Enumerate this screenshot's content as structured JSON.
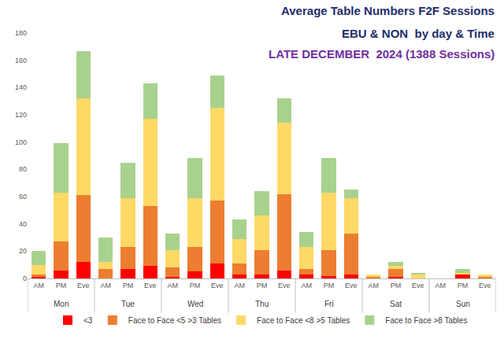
{
  "chart_data": {
    "type": "bar",
    "stacked": true,
    "title": "Average Table Numbers F2F Sessions",
    "subtitle": [
      "EBU & NON  by day & Time",
      "LATE DECEMBER  2024 (1388 Sessions)"
    ],
    "categories": [
      "AM",
      "PM",
      "Eve",
      "AM",
      "PM",
      "Eve",
      "AM",
      "PM",
      "Eve",
      "AM",
      "PM",
      "Eve",
      "AM",
      "PM",
      "Eve",
      "AM",
      "PM",
      "Eve",
      "AM",
      "PM",
      "Eve"
    ],
    "groups": [
      "Mon",
      "Mon",
      "Mon",
      "Tue",
      "Tue",
      "Tue",
      "Wed",
      "Wed",
      "Wed",
      "Thu",
      "Thu",
      "Thu",
      "Fri",
      "Fri",
      "Fri",
      "Sat",
      "Sat",
      "Sat",
      "Sun",
      "Sun",
      "Sun"
    ],
    "series": [
      {
        "name": "<3",
        "color": "#ff0000",
        "values": [
          1,
          6,
          12,
          0,
          7,
          9,
          1,
          5,
          11,
          3,
          3,
          6,
          3,
          2,
          3,
          0,
          1,
          0,
          0,
          3,
          0
        ]
      },
      {
        "name": "Face to Face <5 >3 Tables",
        "color": "#ed7d31",
        "values": [
          2,
          21,
          49,
          7,
          16,
          44,
          7,
          18,
          46,
          8,
          18,
          56,
          4,
          19,
          30,
          1,
          6,
          0,
          0,
          0,
          1
        ]
      },
      {
        "name": "Face to Face <8 >5 Tables",
        "color": "#ffd966",
        "values": [
          7,
          36,
          71,
          5,
          36,
          64,
          13,
          36,
          68,
          18,
          25,
          52,
          16,
          42,
          26,
          2,
          2,
          3,
          0,
          1,
          2
        ]
      },
      {
        "name": "Face to Face >8 Tables",
        "color": "#a9d18e",
        "values": [
          10,
          36,
          35,
          18,
          26,
          26,
          12,
          29,
          24,
          14,
          18,
          18,
          11,
          25,
          6,
          0,
          3,
          1,
          0,
          3,
          0
        ]
      }
    ],
    "ylim": [
      0,
      180
    ],
    "yticks": [
      0,
      20,
      40,
      60,
      80,
      100,
      120,
      140,
      160,
      180
    ],
    "grid": false,
    "legend": "bottom"
  }
}
